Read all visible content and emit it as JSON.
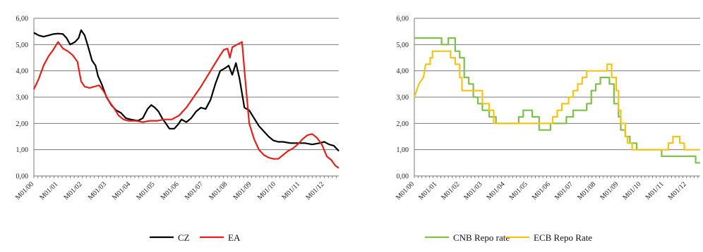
{
  "chart_data": [
    {
      "type": "line",
      "title": "",
      "ylim": [
        0,
        6
      ],
      "y_ticks": [
        "0,00",
        "1,00",
        "2,00",
        "3,00",
        "4,00",
        "5,00",
        "6,00"
      ],
      "x_ticks": [
        "M01/00",
        "M01/01",
        "M01/02",
        "M01/03",
        "M01/04",
        "M01/05",
        "M01/06",
        "M01/07",
        "M01/08",
        "M01/09",
        "M01/10",
        "M01/11",
        "M01/12"
      ],
      "grid": "horizontal",
      "legend_position": "bottom",
      "series": [
        {
          "name": "CZ",
          "color": "#000000",
          "points": [
            [
              0,
              5.45
            ],
            [
              0.2,
              5.35
            ],
            [
              0.4,
              5.3
            ],
            [
              0.6,
              5.35
            ],
            [
              0.8,
              5.4
            ],
            [
              1.0,
              5.42
            ],
            [
              1.2,
              5.4
            ],
            [
              1.35,
              5.25
            ],
            [
              1.5,
              5.0
            ],
            [
              1.7,
              5.1
            ],
            [
              1.85,
              5.25
            ],
            [
              1.95,
              5.55
            ],
            [
              2.1,
              5.35
            ],
            [
              2.25,
              4.9
            ],
            [
              2.4,
              4.4
            ],
            [
              2.55,
              4.2
            ],
            [
              2.65,
              3.8
            ],
            [
              2.8,
              3.5
            ],
            [
              3.0,
              3.0
            ],
            [
              3.2,
              2.7
            ],
            [
              3.4,
              2.5
            ],
            [
              3.6,
              2.4
            ],
            [
              3.8,
              2.2
            ],
            [
              4.0,
              2.15
            ],
            [
              4.3,
              2.1
            ],
            [
              4.5,
              2.2
            ],
            [
              4.7,
              2.55
            ],
            [
              4.85,
              2.7
            ],
            [
              5.0,
              2.6
            ],
            [
              5.15,
              2.45
            ],
            [
              5.3,
              2.2
            ],
            [
              5.45,
              2.0
            ],
            [
              5.6,
              1.8
            ],
            [
              5.8,
              1.8
            ],
            [
              5.95,
              1.95
            ],
            [
              6.1,
              2.15
            ],
            [
              6.3,
              2.05
            ],
            [
              6.5,
              2.2
            ],
            [
              6.7,
              2.45
            ],
            [
              6.9,
              2.6
            ],
            [
              7.1,
              2.55
            ],
            [
              7.3,
              2.9
            ],
            [
              7.5,
              3.5
            ],
            [
              7.7,
              4.0
            ],
            [
              7.9,
              4.1
            ],
            [
              8.05,
              4.2
            ],
            [
              8.2,
              3.85
            ],
            [
              8.35,
              4.3
            ],
            [
              8.5,
              3.7
            ],
            [
              8.7,
              2.6
            ],
            [
              8.9,
              2.5
            ],
            [
              9.1,
              2.2
            ],
            [
              9.3,
              1.9
            ],
            [
              9.5,
              1.7
            ],
            [
              9.7,
              1.5
            ],
            [
              9.9,
              1.35
            ],
            [
              10.1,
              1.3
            ],
            [
              10.3,
              1.3
            ],
            [
              10.6,
              1.25
            ],
            [
              10.9,
              1.25
            ],
            [
              11.2,
              1.25
            ],
            [
              11.5,
              1.2
            ],
            [
              11.8,
              1.25
            ],
            [
              12.0,
              1.3
            ],
            [
              12.2,
              1.2
            ],
            [
              12.4,
              1.15
            ],
            [
              12.6,
              0.95
            ]
          ]
        },
        {
          "name": "EA",
          "color": "#e3201b",
          "points": [
            [
              0,
              3.3
            ],
            [
              0.2,
              3.7
            ],
            [
              0.4,
              4.2
            ],
            [
              0.6,
              4.55
            ],
            [
              0.8,
              4.8
            ],
            [
              1.0,
              5.1
            ],
            [
              1.2,
              4.85
            ],
            [
              1.4,
              4.75
            ],
            [
              1.6,
              4.6
            ],
            [
              1.8,
              4.35
            ],
            [
              1.95,
              3.6
            ],
            [
              2.1,
              3.4
            ],
            [
              2.3,
              3.35
            ],
            [
              2.5,
              3.4
            ],
            [
              2.7,
              3.45
            ],
            [
              2.9,
              3.2
            ],
            [
              3.1,
              2.85
            ],
            [
              3.3,
              2.6
            ],
            [
              3.5,
              2.3
            ],
            [
              3.7,
              2.15
            ],
            [
              3.9,
              2.1
            ],
            [
              4.2,
              2.1
            ],
            [
              4.5,
              2.05
            ],
            [
              4.8,
              2.1
            ],
            [
              5.1,
              2.1
            ],
            [
              5.4,
              2.15
            ],
            [
              5.7,
              2.15
            ],
            [
              6.0,
              2.3
            ],
            [
              6.3,
              2.6
            ],
            [
              6.6,
              3.0
            ],
            [
              6.9,
              3.4
            ],
            [
              7.2,
              3.85
            ],
            [
              7.5,
              4.3
            ],
            [
              7.7,
              4.6
            ],
            [
              7.85,
              4.8
            ],
            [
              8.0,
              4.85
            ],
            [
              8.1,
              4.5
            ],
            [
              8.2,
              4.9
            ],
            [
              8.4,
              5.0
            ],
            [
              8.6,
              5.1
            ],
            [
              8.75,
              3.5
            ],
            [
              8.9,
              2.0
            ],
            [
              9.1,
              1.4
            ],
            [
              9.3,
              1.0
            ],
            [
              9.5,
              0.8
            ],
            [
              9.7,
              0.7
            ],
            [
              9.9,
              0.65
            ],
            [
              10.1,
              0.65
            ],
            [
              10.3,
              0.8
            ],
            [
              10.5,
              0.95
            ],
            [
              10.7,
              1.05
            ],
            [
              10.9,
              1.2
            ],
            [
              11.1,
              1.4
            ],
            [
              11.3,
              1.55
            ],
            [
              11.5,
              1.6
            ],
            [
              11.7,
              1.45
            ],
            [
              11.9,
              1.2
            ],
            [
              12.1,
              0.75
            ],
            [
              12.3,
              0.6
            ],
            [
              12.45,
              0.4
            ],
            [
              12.6,
              0.3
            ]
          ]
        }
      ]
    },
    {
      "type": "line",
      "title": "",
      "ylim": [
        0,
        6
      ],
      "y_ticks": [
        "0,00",
        "1,00",
        "2,00",
        "3,00",
        "4,00",
        "5,00",
        "6,00"
      ],
      "x_ticks": [
        "M01/00",
        "M01/01",
        "M01/02",
        "M01/03",
        "M01/04",
        "M01/05",
        "M01/06",
        "M01/07",
        "M01/08",
        "M01/09",
        "M01/10",
        "M01/11",
        "M01/12"
      ],
      "grid": "horizontal",
      "legend_position": "bottom",
      "series": [
        {
          "name": "CNB Repo rate",
          "color": "#7fbf4a",
          "points": [
            [
              0,
              5.25
            ],
            [
              1.2,
              5.25
            ],
            [
              1.2,
              5.0
            ],
            [
              1.5,
              5.0
            ],
            [
              1.5,
              5.25
            ],
            [
              1.8,
              5.25
            ],
            [
              1.8,
              4.75
            ],
            [
              2.0,
              4.75
            ],
            [
              2.0,
              4.5
            ],
            [
              2.2,
              4.5
            ],
            [
              2.2,
              3.75
            ],
            [
              2.4,
              3.75
            ],
            [
              2.4,
              3.5
            ],
            [
              2.6,
              3.5
            ],
            [
              2.6,
              3.0
            ],
            [
              2.8,
              3.0
            ],
            [
              2.8,
              2.75
            ],
            [
              3.0,
              2.75
            ],
            [
              3.0,
              2.5
            ],
            [
              3.3,
              2.5
            ],
            [
              3.3,
              2.25
            ],
            [
              3.6,
              2.25
            ],
            [
              3.6,
              2.0
            ],
            [
              4.6,
              2.0
            ],
            [
              4.6,
              2.25
            ],
            [
              4.8,
              2.25
            ],
            [
              4.8,
              2.5
            ],
            [
              5.2,
              2.5
            ],
            [
              5.2,
              2.25
            ],
            [
              5.5,
              2.25
            ],
            [
              5.5,
              1.75
            ],
            [
              6.0,
              1.75
            ],
            [
              6.0,
              2.0
            ],
            [
              6.7,
              2.0
            ],
            [
              6.7,
              2.25
            ],
            [
              7.0,
              2.25
            ],
            [
              7.0,
              2.5
            ],
            [
              7.6,
              2.5
            ],
            [
              7.6,
              2.75
            ],
            [
              7.8,
              2.75
            ],
            [
              7.8,
              3.25
            ],
            [
              8.0,
              3.25
            ],
            [
              8.0,
              3.5
            ],
            [
              8.2,
              3.5
            ],
            [
              8.2,
              3.75
            ],
            [
              8.6,
              3.75
            ],
            [
              8.6,
              3.5
            ],
            [
              8.8,
              3.5
            ],
            [
              8.8,
              2.75
            ],
            [
              9.0,
              2.75
            ],
            [
              9.0,
              2.25
            ],
            [
              9.1,
              2.25
            ],
            [
              9.1,
              1.75
            ],
            [
              9.3,
              1.75
            ],
            [
              9.3,
              1.5
            ],
            [
              9.5,
              1.5
            ],
            [
              9.5,
              1.25
            ],
            [
              9.8,
              1.25
            ],
            [
              9.8,
              1.0
            ],
            [
              10.9,
              1.0
            ],
            [
              10.9,
              0.75
            ],
            [
              12.4,
              0.75
            ],
            [
              12.4,
              0.5
            ],
            [
              12.6,
              0.5
            ]
          ]
        },
        {
          "name": "ECB Repo Rate",
          "color": "#f2c418",
          "points": [
            [
              0,
              3.0
            ],
            [
              0.2,
              3.5
            ],
            [
              0.4,
              3.75
            ],
            [
              0.5,
              4.25
            ],
            [
              0.7,
              4.25
            ],
            [
              0.7,
              4.5
            ],
            [
              0.8,
              4.5
            ],
            [
              0.8,
              4.75
            ],
            [
              1.6,
              4.75
            ],
            [
              1.6,
              4.5
            ],
            [
              1.8,
              4.5
            ],
            [
              1.8,
              4.25
            ],
            [
              2.0,
              4.25
            ],
            [
              2.0,
              3.75
            ],
            [
              2.1,
              3.75
            ],
            [
              2.1,
              3.25
            ],
            [
              3.0,
              3.25
            ],
            [
              3.0,
              2.75
            ],
            [
              3.3,
              2.75
            ],
            [
              3.3,
              2.5
            ],
            [
              3.5,
              2.5
            ],
            [
              3.5,
              2.0
            ],
            [
              6.1,
              2.0
            ],
            [
              6.1,
              2.25
            ],
            [
              6.3,
              2.25
            ],
            [
              6.3,
              2.5
            ],
            [
              6.5,
              2.5
            ],
            [
              6.5,
              2.75
            ],
            [
              6.8,
              2.75
            ],
            [
              6.8,
              3.0
            ],
            [
              7.0,
              3.0
            ],
            [
              7.0,
              3.25
            ],
            [
              7.2,
              3.25
            ],
            [
              7.2,
              3.5
            ],
            [
              7.4,
              3.5
            ],
            [
              7.4,
              3.75
            ],
            [
              7.6,
              3.75
            ],
            [
              7.6,
              4.0
            ],
            [
              8.5,
              4.0
            ],
            [
              8.5,
              4.25
            ],
            [
              8.7,
              4.25
            ],
            [
              8.7,
              3.75
            ],
            [
              8.9,
              3.75
            ],
            [
              8.9,
              3.25
            ],
            [
              9.0,
              3.25
            ],
            [
              9.0,
              2.5
            ],
            [
              9.1,
              2.5
            ],
            [
              9.1,
              2.0
            ],
            [
              9.3,
              2.0
            ],
            [
              9.3,
              1.5
            ],
            [
              9.4,
              1.5
            ],
            [
              9.4,
              1.25
            ],
            [
              9.6,
              1.25
            ],
            [
              9.6,
              1.0
            ],
            [
              11.2,
              1.0
            ],
            [
              11.2,
              1.25
            ],
            [
              11.4,
              1.25
            ],
            [
              11.4,
              1.5
            ],
            [
              11.7,
              1.5
            ],
            [
              11.7,
              1.25
            ],
            [
              11.9,
              1.25
            ],
            [
              11.9,
              1.0
            ],
            [
              12.6,
              1.0
            ]
          ]
        }
      ]
    }
  ]
}
